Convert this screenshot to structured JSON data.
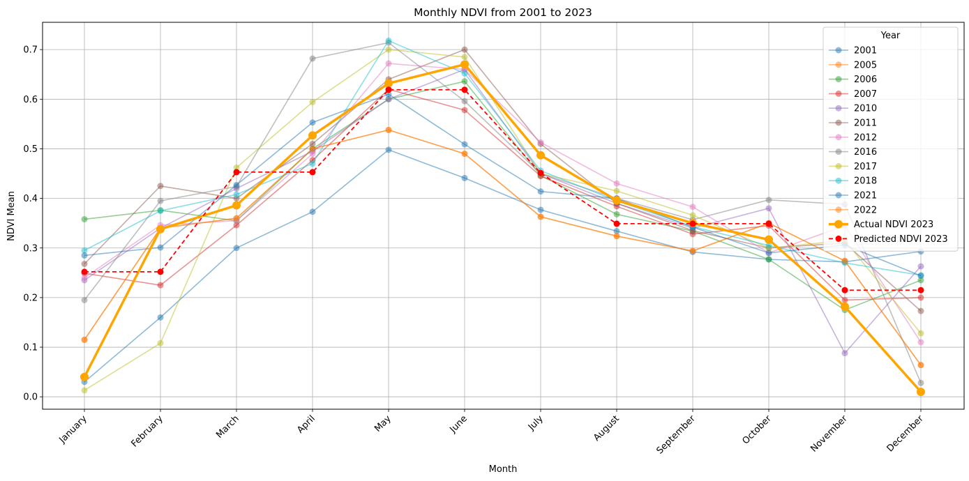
{
  "chart_data": {
    "type": "line",
    "title": "Monthly NDVI from 2001 to 2023",
    "xlabel": "Month",
    "ylabel": "NDVI Mean",
    "categories": [
      "January",
      "February",
      "March",
      "April",
      "May",
      "June",
      "July",
      "August",
      "September",
      "October",
      "November",
      "December"
    ],
    "ylim": [
      -0.025,
      0.755
    ],
    "yticks": [
      0.0,
      0.1,
      0.2,
      0.3,
      0.4,
      0.5,
      0.6,
      0.7
    ],
    "ytick_labels": [
      "0.0",
      "0.1",
      "0.2",
      "0.3",
      "0.4",
      "0.5",
      "0.6",
      "0.7"
    ],
    "grid": true,
    "legend": {
      "title": "Year",
      "placement": "top-right"
    },
    "series": [
      {
        "name": "2001",
        "color": "#1f77b4",
        "style": "faded",
        "values": [
          0.03,
          0.16,
          0.3,
          0.373,
          0.498,
          0.441,
          0.377,
          0.334,
          0.292,
          0.277,
          0.272,
          0.293
        ]
      },
      {
        "name": "2005",
        "color": "#ff7f0e",
        "style": "faded",
        "values": [
          0.115,
          0.34,
          0.36,
          0.5,
          0.538,
          0.49,
          0.363,
          0.324,
          0.294,
          0.35,
          0.274,
          0.064
        ]
      },
      {
        "name": "2006",
        "color": "#2ca02c",
        "style": "faded",
        "values": [
          0.358,
          0.376,
          0.355,
          0.5,
          0.6,
          0.636,
          0.446,
          0.368,
          0.334,
          0.277,
          0.175,
          0.235
        ]
      },
      {
        "name": "2007",
        "color": "#d62728",
        "style": "faded",
        "values": [
          0.249,
          0.225,
          0.346,
          0.477,
          0.62,
          0.578,
          0.445,
          0.384,
          0.328,
          0.345,
          0.195,
          0.2
        ]
      },
      {
        "name": "2010",
        "color": "#9467bd",
        "style": "faded",
        "values": [
          0.235,
          0.34,
          0.42,
          0.495,
          0.6,
          0.66,
          0.45,
          0.39,
          0.34,
          0.38,
          0.088,
          0.263
        ]
      },
      {
        "name": "2011",
        "color": "#8c564b",
        "style": "faded",
        "values": [
          0.268,
          0.425,
          0.4,
          0.51,
          0.64,
          0.7,
          0.51,
          0.39,
          0.335,
          0.3,
          0.31,
          0.173
        ]
      },
      {
        "name": "2012",
        "color": "#e377c2",
        "style": "faded",
        "values": [
          0.24,
          0.346,
          0.355,
          0.49,
          0.672,
          0.66,
          0.513,
          0.43,
          0.383,
          0.29,
          0.345,
          0.11
        ]
      },
      {
        "name": "2016",
        "color": "#7f7f7f",
        "style": "faded",
        "values": [
          0.195,
          0.395,
          0.424,
          0.682,
          0.714,
          0.596,
          0.45,
          0.4,
          0.357,
          0.397,
          0.388,
          0.028
        ]
      },
      {
        "name": "2017",
        "color": "#bcbd22",
        "style": "faded",
        "values": [
          0.013,
          0.108,
          0.462,
          0.594,
          0.7,
          0.685,
          0.45,
          0.415,
          0.366,
          0.3,
          0.315,
          0.128
        ]
      },
      {
        "name": "2018",
        "color": "#17becf",
        "style": "faded",
        "values": [
          0.295,
          0.375,
          0.408,
          0.47,
          0.718,
          0.652,
          0.456,
          0.395,
          0.343,
          0.305,
          0.27,
          0.245
        ]
      },
      {
        "name": "2021",
        "color": "#1f77b4",
        "style": "faded",
        "values": [
          0.285,
          0.301,
          0.427,
          0.553,
          0.61,
          0.509,
          0.414,
          0.4,
          0.342,
          0.29,
          0.306,
          0.244
        ]
      },
      {
        "name": "2022",
        "color": "#ff7f0e",
        "style": "faded",
        "values": [
          0.115,
          0.34,
          0.36,
          0.5,
          0.538,
          0.49,
          0.363,
          0.324,
          0.294,
          0.35,
          0.274,
          0.064
        ]
      },
      {
        "name": "Actual NDVI 2023",
        "color": "#ffa500",
        "style": "bold",
        "values": [
          0.04,
          0.338,
          0.386,
          0.527,
          0.632,
          0.67,
          0.487,
          0.396,
          0.35,
          0.317,
          0.182,
          0.01
        ]
      },
      {
        "name": "Predicted NDVI 2023",
        "color": "#ff0000",
        "style": "dashed",
        "values": [
          0.252,
          0.252,
          0.453,
          0.453,
          0.619,
          0.619,
          0.451,
          0.349,
          0.349,
          0.349,
          0.215,
          0.215
        ]
      }
    ]
  }
}
